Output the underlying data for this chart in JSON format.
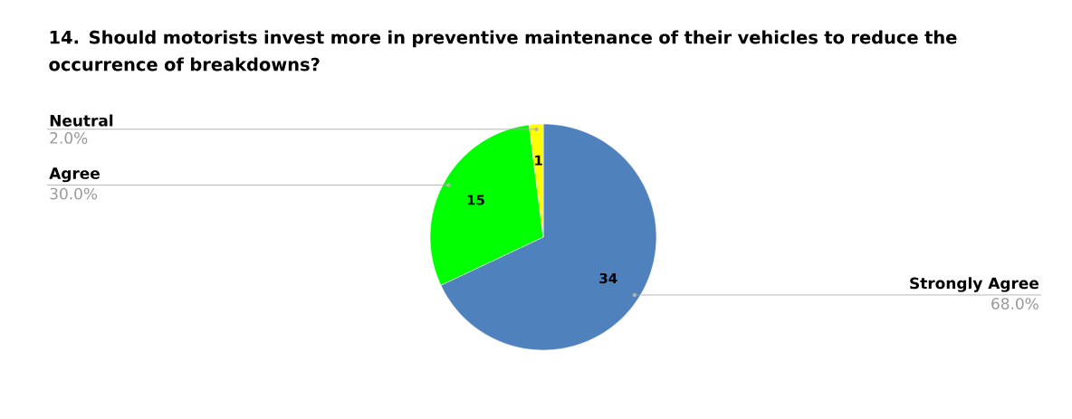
{
  "chart_data": {
    "type": "pie",
    "title": "14. Should motorists invest more in preventive maintenance of their vehicles to reduce the occurrence of breakdowns?",
    "categories": [
      "Strongly Agree",
      "Agree",
      "Neutral"
    ],
    "values": [
      34,
      15,
      1
    ],
    "colors": [
      "#4f81bd",
      "#00ff00",
      "#ffff00"
    ],
    "data_labels": true,
    "annotations": [
      "68.0%",
      "30.0%",
      "2.0%"
    ]
  }
}
